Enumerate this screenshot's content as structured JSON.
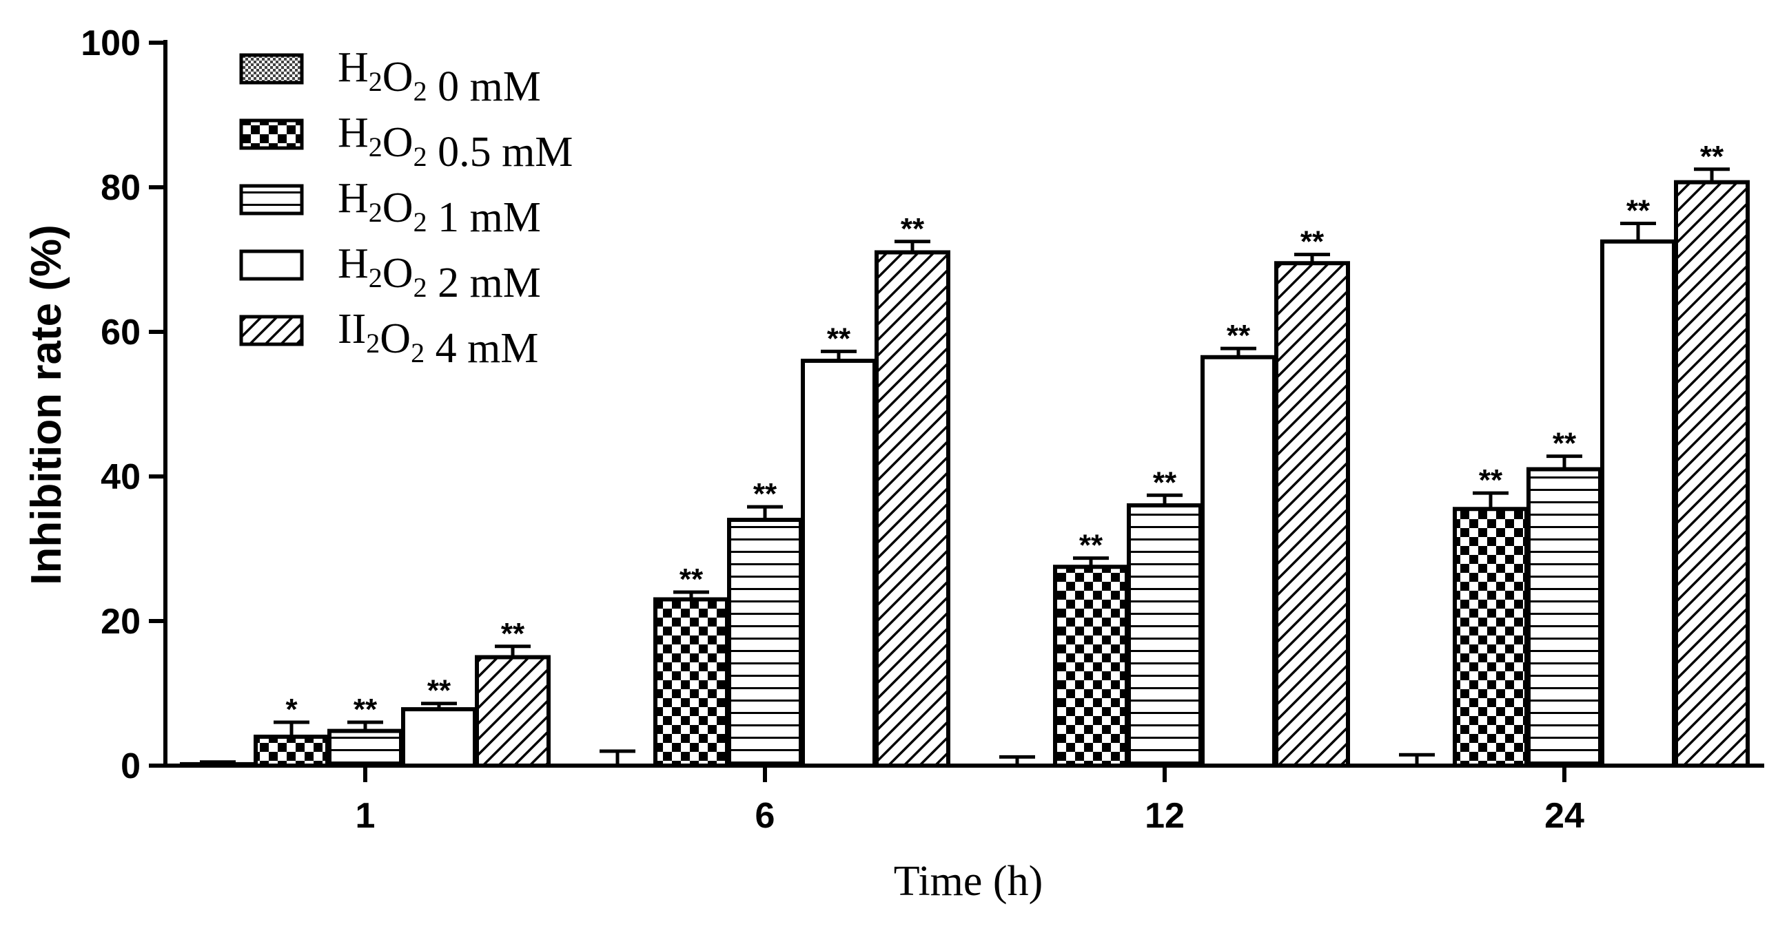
{
  "chart_data": {
    "type": "bar",
    "title": "",
    "xlabel": "Time (h)",
    "ylabel": "Inhibition rate (%)",
    "ylim": [
      0,
      100
    ],
    "yticks": [
      "0",
      "20",
      "40",
      "60",
      "80",
      "100"
    ],
    "categories": [
      "1",
      "6",
      "12",
      "24"
    ],
    "legend_position": "top-left",
    "series": [
      {
        "name": "H2O2 0 mM",
        "legend_base": "H",
        "legend_sub1": "2",
        "legend_mid": "O",
        "legend_sub2": "2",
        "legend_rest": " 0 mM",
        "pattern": "fine",
        "values": [
          0.2,
          0,
          0,
          0
        ],
        "errors": [
          0.3,
          2,
          1.2,
          1.5
        ],
        "sig": [
          "",
          "",
          "",
          ""
        ]
      },
      {
        "name": "H2O2 0.5 mM",
        "legend_base": "H",
        "legend_sub1": "2",
        "legend_mid": "O",
        "legend_sub2": "2",
        "legend_rest": " 0.5 mM",
        "pattern": "checker",
        "values": [
          4,
          23,
          27.5,
          35.5
        ],
        "errors": [
          2,
          1,
          1.2,
          2.2
        ],
        "sig": [
          "*",
          "**",
          "**",
          "**"
        ]
      },
      {
        "name": "H2O2 1 mM",
        "legend_base": "H",
        "legend_sub1": "2",
        "legend_mid": "O",
        "legend_sub2": "2",
        "legend_rest": " 1 mM",
        "pattern": "hlines",
        "values": [
          4.8,
          34,
          36,
          41
        ],
        "errors": [
          1.2,
          1.8,
          1.4,
          1.8
        ],
        "sig": [
          "**",
          "**",
          "**",
          "**"
        ]
      },
      {
        "name": "H2O2 2 mM",
        "legend_base": "H",
        "legend_sub1": "2",
        "legend_mid": "O",
        "legend_sub2": "2",
        "legend_rest": " 2 mM",
        "pattern": "white",
        "values": [
          7.8,
          56,
          56.5,
          72.5
        ],
        "errors": [
          0.8,
          1.3,
          1.2,
          2.5
        ],
        "sig": [
          "**",
          "**",
          "**",
          "**"
        ]
      },
      {
        "name": "II2O2 4 mM",
        "legend_base": "II",
        "legend_sub1": "2",
        "legend_mid": "O",
        "legend_sub2": "2",
        "legend_rest": " 4 mM",
        "pattern": "diag",
        "values": [
          15,
          71,
          69.5,
          80.7
        ],
        "errors": [
          1.5,
          1.5,
          1.2,
          1.8
        ],
        "sig": [
          "**",
          "**",
          "**",
          "**"
        ]
      }
    ]
  }
}
